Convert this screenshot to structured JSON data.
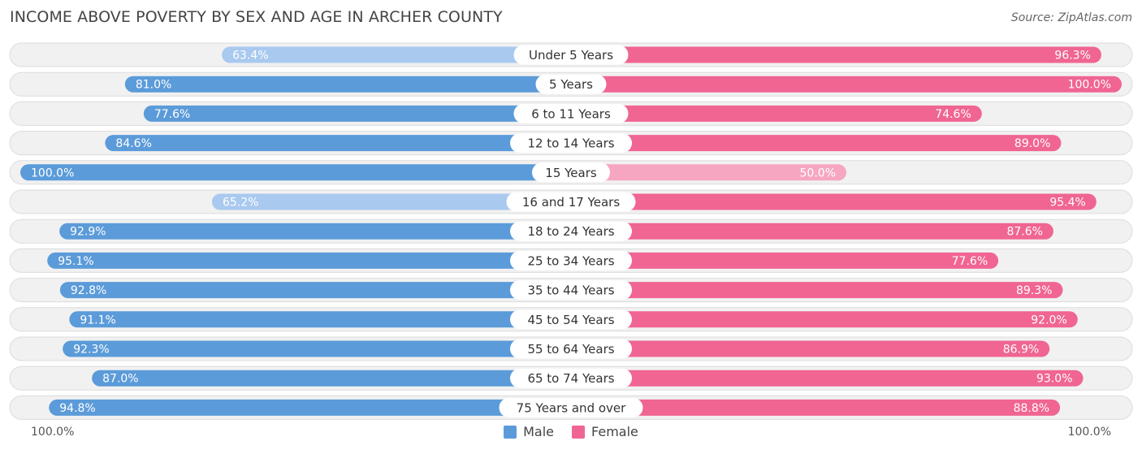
{
  "header": {
    "title": "INCOME ABOVE POVERTY BY SEX AND AGE IN ARCHER COUNTY",
    "source": "Source: ZipAtlas.com"
  },
  "legend": {
    "male_label": "Male",
    "female_label": "Female"
  },
  "axis": {
    "left_label": "100.0%",
    "right_label": "100.0%"
  },
  "colors": {
    "male_strong": "#5b9bd9",
    "male_light": "#a9c9ef",
    "female_strong": "#f06592",
    "female_light": "#f7a6c1",
    "row_bg": "#f1f1f1",
    "row_border": "#dcdcdc"
  },
  "chart_data": {
    "type": "bar",
    "orientation": "diverging-horizontal",
    "title": "INCOME ABOVE POVERTY BY SEX AND AGE IN ARCHER COUNTY",
    "xlim": [
      0,
      100
    ],
    "categories": [
      "Under 5 Years",
      "5 Years",
      "6 to 11 Years",
      "12 to 14 Years",
      "15 Years",
      "16 and 17 Years",
      "18 to 24 Years",
      "25 to 34 Years",
      "35 to 44 Years",
      "45 to 54 Years",
      "55 to 64 Years",
      "65 to 74 Years",
      "75 Years and over"
    ],
    "series": [
      {
        "name": "Male",
        "values": [
          63.4,
          81.0,
          77.6,
          84.6,
          100.0,
          65.2,
          92.9,
          95.1,
          92.8,
          91.1,
          92.3,
          87.0,
          94.8
        ],
        "labels": [
          "63.4%",
          "81.0%",
          "77.6%",
          "84.6%",
          "100.0%",
          "65.2%",
          "92.9%",
          "95.1%",
          "92.8%",
          "91.1%",
          "92.3%",
          "87.0%",
          "94.8%"
        ]
      },
      {
        "name": "Female",
        "values": [
          96.3,
          100.0,
          74.6,
          89.0,
          50.0,
          95.4,
          87.6,
          77.6,
          89.3,
          92.0,
          86.9,
          93.0,
          88.8
        ],
        "labels": [
          "96.3%",
          "100.0%",
          "74.6%",
          "89.0%",
          "50.0%",
          "95.4%",
          "87.6%",
          "77.6%",
          "89.3%",
          "92.0%",
          "86.9%",
          "93.0%",
          "88.8%"
        ]
      }
    ]
  }
}
